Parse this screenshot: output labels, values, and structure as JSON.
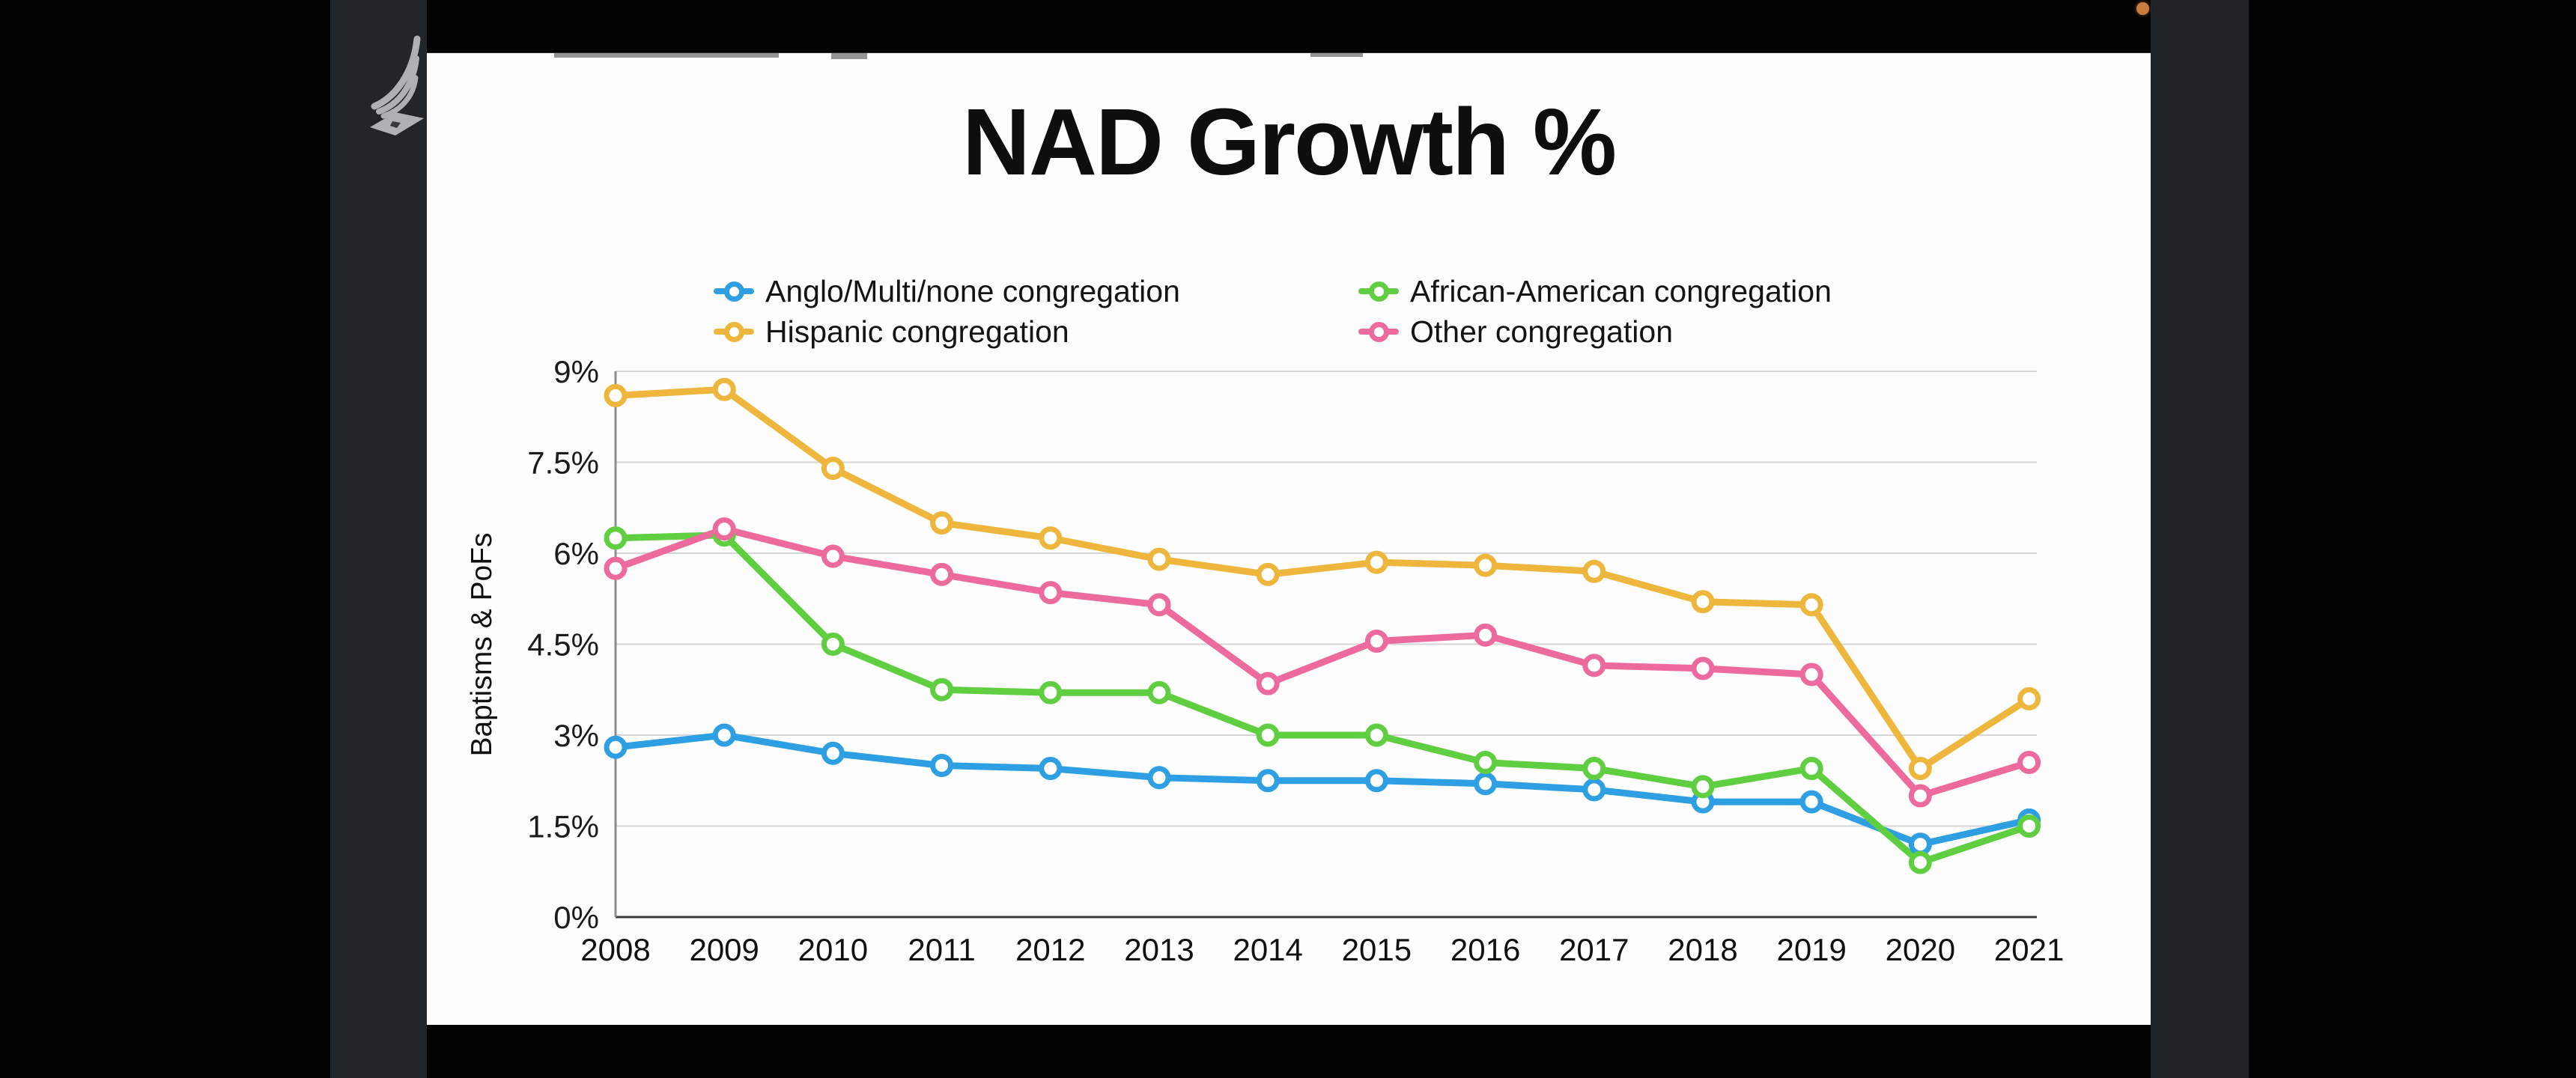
{
  "scene": {
    "background_color": "#020202",
    "screen_edge_color": "#212428",
    "slide_background": "#fdfdfd"
  },
  "indicators": {
    "recording_dot_color": "#c97c3e"
  },
  "logo": {
    "label": "adventist-flame-logo",
    "color": "#aeb0b2"
  },
  "slide": {
    "title": "NAD Growth %"
  },
  "chart_data": {
    "type": "line",
    "title": "NAD Growth %",
    "xlabel": "",
    "ylabel": "Baptisms & PoFs",
    "ylim": [
      0,
      9
    ],
    "grid": true,
    "legend_position": "top",
    "yticks": [
      "0%",
      "1.5%",
      "3%",
      "4.5%",
      "6%",
      "7.5%",
      "9%"
    ],
    "x": [
      "2008",
      "2009",
      "2010",
      "2011",
      "2012",
      "2013",
      "2014",
      "2015",
      "2016",
      "2017",
      "2018",
      "2019",
      "2020",
      "2021"
    ],
    "series": [
      {
        "name": "Anglo/Multi/none congregation",
        "color": "#2E9FE2",
        "values": [
          2.8,
          3.0,
          2.7,
          2.5,
          2.45,
          2.3,
          2.25,
          2.25,
          2.2,
          2.1,
          1.9,
          1.9,
          1.2,
          1.6
        ]
      },
      {
        "name": "African-American congregation",
        "color": "#5FCE41",
        "values": [
          6.25,
          6.3,
          4.5,
          3.75,
          3.7,
          3.7,
          3.0,
          3.0,
          2.55,
          2.45,
          2.15,
          2.45,
          0.9,
          1.5
        ]
      },
      {
        "name": "Hispanic congregation",
        "color": "#EEB63C",
        "values": [
          8.6,
          8.7,
          7.4,
          6.5,
          6.25,
          5.9,
          5.65,
          5.85,
          5.8,
          5.7,
          5.2,
          5.15,
          2.45,
          3.6
        ]
      },
      {
        "name": "Other congregation",
        "color": "#EC6A9D",
        "values": [
          5.75,
          6.4,
          5.95,
          5.65,
          5.35,
          5.15,
          3.85,
          4.55,
          4.65,
          4.15,
          4.1,
          4.0,
          2.0,
          2.55
        ]
      }
    ]
  }
}
